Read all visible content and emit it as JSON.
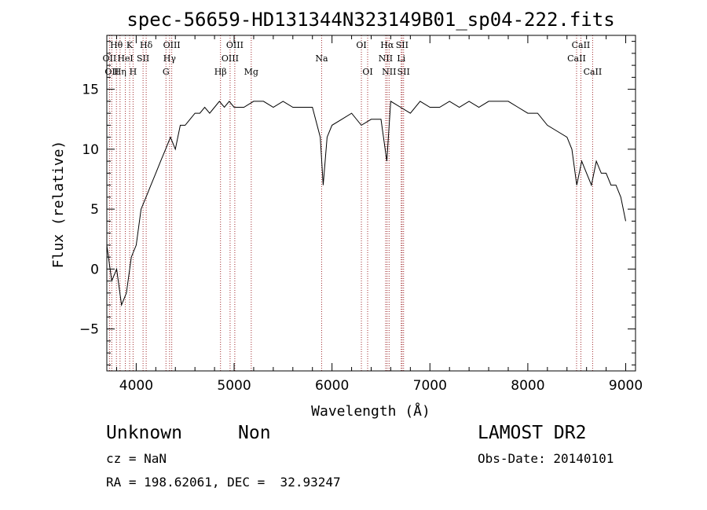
{
  "chart_data": {
    "type": "line",
    "title": "spec-56659-HD131344N323149B01_sp04-222.fits",
    "xlabel": "Wavelength (Å)",
    "ylabel": "Flux (relative)",
    "xlim": [
      3700,
      9100
    ],
    "ylim": [
      -8.5,
      19.5
    ],
    "x_ticks": [
      4000,
      5000,
      6000,
      7000,
      8000,
      9000
    ],
    "y_ticks": [
      -5,
      0,
      5,
      10,
      15
    ],
    "x_tick_labels": [
      "4000",
      "5000",
      "6000",
      "7000",
      "8000",
      "9000"
    ],
    "y_tick_labels": [
      "−5",
      "0",
      "5",
      "10",
      "15"
    ],
    "line_color": "#000000",
    "marker_color": "#a0292c",
    "series": [
      {
        "x": [
          3700,
          3750,
          3800,
          3850,
          3900,
          3950,
          4000,
          4050,
          4100,
          4150,
          4200,
          4250,
          4300,
          4350,
          4400,
          4450,
          4500,
          4550,
          4600,
          4650,
          4700,
          4750,
          4800,
          4850,
          4900,
          4950,
          5000,
          5100,
          5200,
          5300,
          5400,
          5500,
          5600,
          5700,
          5800,
          5880,
          5910,
          5950,
          6000,
          6100,
          6200,
          6300,
          6400,
          6500,
          6560,
          6600,
          6700,
          6800,
          6900,
          7000,
          7100,
          7200,
          7300,
          7400,
          7500,
          7600,
          7700,
          7800,
          7900,
          8000,
          8100,
          8200,
          8300,
          8400,
          8450,
          8500,
          8550,
          8600,
          8650,
          8700,
          8750,
          8800,
          8850,
          8900,
          8950,
          9000
        ],
        "y": [
          2,
          -1,
          0,
          -3,
          -2,
          1,
          2,
          5,
          6,
          7,
          8,
          9,
          10,
          11,
          10,
          12,
          12,
          12.5,
          13,
          13,
          13.5,
          13,
          13.5,
          14,
          13.5,
          14,
          13.5,
          13.5,
          14,
          14,
          13.5,
          14,
          13.5,
          13.5,
          13.5,
          11,
          7,
          11,
          12,
          12.5,
          13,
          12,
          12.5,
          12.5,
          9,
          14,
          13.5,
          13,
          14,
          13.5,
          13.5,
          14,
          13.5,
          14,
          13.5,
          14,
          14,
          14,
          13.5,
          13,
          13,
          12,
          11.5,
          11,
          10,
          7,
          9,
          8,
          7,
          9,
          8,
          8,
          7,
          7,
          6,
          4
        ]
      }
    ],
    "lines": [
      {
        "wave": 3727,
        "label": "OII",
        "row": 2
      },
      {
        "wave": 3750,
        "label": "OII",
        "row": 3
      },
      {
        "wave": 3798,
        "label": "Hθ",
        "row": 1
      },
      {
        "wave": 3835,
        "label": "Hη",
        "row": 3
      },
      {
        "wave": 3889,
        "label": "HeI",
        "row": 2
      },
      {
        "wave": 3933,
        "label": "K",
        "row": 1
      },
      {
        "wave": 3968,
        "label": "H",
        "row": 3
      },
      {
        "wave": 4070,
        "label": "SII",
        "row": 2
      },
      {
        "wave": 4102,
        "label": "Hδ",
        "row": 1
      },
      {
        "wave": 4304,
        "label": "G",
        "row": 3
      },
      {
        "wave": 4341,
        "label": "Hγ",
        "row": 2
      },
      {
        "wave": 4363,
        "label": "OIII",
        "row": 1
      },
      {
        "wave": 4861,
        "label": "Hβ",
        "row": 3
      },
      {
        "wave": 4959,
        "label": "OIII",
        "row": 2
      },
      {
        "wave": 5007,
        "label": "OIII",
        "row": 1
      },
      {
        "wave": 5175,
        "label": "Mg",
        "row": 3
      },
      {
        "wave": 5894,
        "label": "Na",
        "row": 2
      },
      {
        "wave": 6300,
        "label": "OI",
        "row": 1
      },
      {
        "wave": 6364,
        "label": "OI",
        "row": 3
      },
      {
        "wave": 6548,
        "label": "NII",
        "row": 2
      },
      {
        "wave": 6563,
        "label": "Hα",
        "row": 1
      },
      {
        "wave": 6583,
        "label": "NII",
        "row": 3
      },
      {
        "wave": 6707,
        "label": "Li",
        "row": 2
      },
      {
        "wave": 6716,
        "label": "SII",
        "row": 1
      },
      {
        "wave": 6731,
        "label": "SII",
        "row": 3
      },
      {
        "wave": 8498,
        "label": "CaII",
        "row": 2
      },
      {
        "wave": 8542,
        "label": "CaII",
        "row": 1
      },
      {
        "wave": 8662,
        "label": "CaII",
        "row": 3
      }
    ]
  },
  "info": {
    "object_class": "Unknown",
    "object_subclass": "Non",
    "survey": "LAMOST DR2",
    "cz": "cz = NaN",
    "obs_date": "Obs-Date: 20140101",
    "coords": "RA = 198.62061, DEC =  32.93247"
  }
}
